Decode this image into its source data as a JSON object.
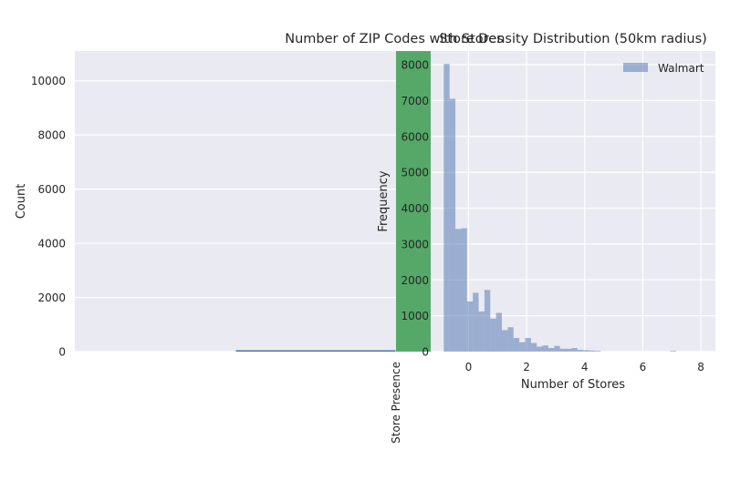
{
  "chart_data": [
    {
      "type": "bar",
      "title": "Number of ZIP Codes with Stores",
      "xlabel": "",
      "ylabel": "Count",
      "ylim": [
        0,
        11100
      ],
      "yticks": [
        0,
        2000,
        4000,
        6000,
        8000,
        10000
      ],
      "categories": [
        "",
        "Store Presence"
      ],
      "values": [
        50,
        11100
      ],
      "colors": [
        "#4c72b0",
        "#55a868"
      ],
      "grid": true
    },
    {
      "type": "bar",
      "title": "Store Density Distribution (50km radius)",
      "xlabel": "Number of Stores",
      "ylabel": "Frequency",
      "xlim": [
        -1.3,
        8.5
      ],
      "ylim": [
        0,
        8000
      ],
      "xticks": [
        0,
        2,
        4,
        6,
        8
      ],
      "yticks": [
        0,
        1000,
        2000,
        3000,
        4000,
        5000,
        6000,
        7000,
        8000
      ],
      "legend": "top-right",
      "grid": true,
      "series": [
        {
          "name": "Walmart",
          "color": "#4c72b0",
          "bin_width": 0.2,
          "bin_starts": [
            -0.85,
            -0.65,
            -0.45,
            -0.25,
            -0.05,
            0.15,
            0.35,
            0.55,
            0.75,
            0.95,
            1.15,
            1.35,
            1.55,
            1.75,
            1.95,
            2.15,
            2.35,
            2.55,
            2.75,
            2.95,
            3.15,
            3.35,
            3.55,
            3.75,
            3.95,
            4.15,
            4.35,
            6.95
          ],
          "values": [
            8020,
            7050,
            3420,
            3440,
            1400,
            1640,
            1120,
            1720,
            920,
            1080,
            600,
            680,
            380,
            260,
            380,
            240,
            140,
            170,
            100,
            160,
            80,
            80,
            100,
            50,
            40,
            30,
            20,
            20
          ]
        }
      ]
    }
  ]
}
